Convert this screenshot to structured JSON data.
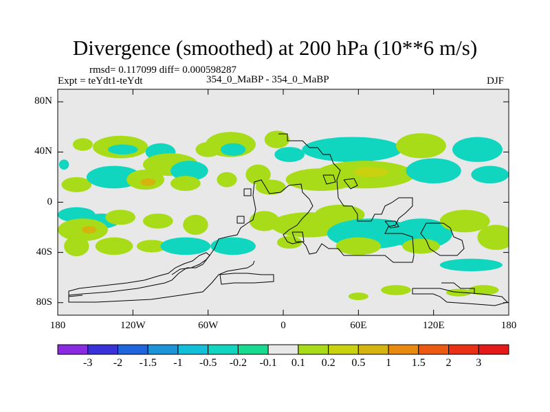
{
  "title": "Divergence (smoothed) at 200 hPa (10**6 m/s)",
  "stats_line": "rmsd= 0.117099 diff= 0.000598287",
  "left_label": "Expt = teYdt1-teYdt",
  "center_label": "354_0_MaBP - 354_0_MaBP",
  "right_label": "DJF",
  "chart_data": {
    "type": "heatmap",
    "title": "Divergence (smoothed) at 200 hPa (10**6 m/s)",
    "x_ticks": [
      {
        "value": -180,
        "label": "180"
      },
      {
        "value": -120,
        "label": "120W"
      },
      {
        "value": -60,
        "label": "60W"
      },
      {
        "value": 0,
        "label": "0"
      },
      {
        "value": 60,
        "label": "60E"
      },
      {
        "value": 120,
        "label": "120E"
      },
      {
        "value": 180,
        "label": "180"
      }
    ],
    "y_ticks": [
      {
        "value": 80,
        "label": "80N"
      },
      {
        "value": 40,
        "label": "40N"
      },
      {
        "value": 0,
        "label": "0"
      },
      {
        "value": -40,
        "label": "40S"
      },
      {
        "value": -80,
        "label": "80S"
      }
    ],
    "xlim": [
      -180,
      180
    ],
    "ylim": [
      -90,
      90
    ],
    "colorbar": {
      "labels": [
        "-3",
        "-2",
        "-1.5",
        "-1",
        "-0.5",
        "-0.2",
        "-0.1",
        "0.1",
        "0.2",
        "0.5",
        "1",
        "1.5",
        "2",
        "3"
      ],
      "colors": [
        "#8a2be2",
        "#3a32d8",
        "#1f66dc",
        "#1d94d8",
        "#12bfd8",
        "#10d6c0",
        "#18db90",
        "#e8e8e8",
        "#a8dc18",
        "#c8d20e",
        "#d6b410",
        "#e88a10",
        "#ec5a12",
        "#ea3014",
        "#e41a1a"
      ]
    },
    "background_color": "#e8e8e8",
    "features": [
      {
        "lon": -160,
        "lat": 46,
        "rlon": 8,
        "rlat": 5,
        "level": "0.1"
      },
      {
        "lon": -130,
        "lat": 44,
        "rlon": 22,
        "rlat": 9,
        "level": "0.1"
      },
      {
        "lon": -128,
        "lat": 42,
        "rlon": 12,
        "rlat": 4,
        "level": "-0.2"
      },
      {
        "lon": -98,
        "lat": 40,
        "rlon": 12,
        "rlat": 7,
        "level": "-0.2"
      },
      {
        "lon": -90,
        "lat": 30,
        "rlon": 22,
        "rlat": 9,
        "level": "0.1"
      },
      {
        "lon": -60,
        "lat": 42,
        "rlon": 10,
        "rlat": 6,
        "level": "0.1"
      },
      {
        "lon": -42,
        "lat": 46,
        "rlon": 20,
        "rlat": 10,
        "level": "0.1"
      },
      {
        "lon": -40,
        "lat": 42,
        "rlon": 10,
        "rlat": 5,
        "level": "-0.2"
      },
      {
        "lon": -5,
        "lat": 50,
        "rlon": 10,
        "rlat": 7,
        "level": "0.1"
      },
      {
        "lon": 5,
        "lat": 38,
        "rlon": 12,
        "rlat": 6,
        "level": "-0.2"
      },
      {
        "lon": 55,
        "lat": 42,
        "rlon": 40,
        "rlat": 10,
        "level": "-0.2"
      },
      {
        "lon": 110,
        "lat": 45,
        "rlon": 20,
        "rlat": 10,
        "level": "0.1"
      },
      {
        "lon": 155,
        "lat": 42,
        "rlon": 20,
        "rlat": 10,
        "level": "-0.2"
      },
      {
        "lon": -175,
        "lat": 30,
        "rlon": 4,
        "rlat": 4,
        "level": "-0.2"
      },
      {
        "lon": -165,
        "lat": 14,
        "rlon": 12,
        "rlat": 6,
        "level": "0.1"
      },
      {
        "lon": -135,
        "lat": 20,
        "rlon": 22,
        "rlat": 9,
        "level": "-0.2"
      },
      {
        "lon": -110,
        "lat": 18,
        "rlon": 15,
        "rlat": 8,
        "level": "0.1"
      },
      {
        "lon": -108,
        "lat": 16,
        "rlon": 6,
        "rlat": 3,
        "level": "0.5"
      },
      {
        "lon": -75,
        "lat": 25,
        "rlon": 15,
        "rlat": 8,
        "level": "-0.2"
      },
      {
        "lon": -78,
        "lat": 15,
        "rlon": 12,
        "rlat": 6,
        "level": "0.1"
      },
      {
        "lon": -45,
        "lat": 18,
        "rlon": 8,
        "rlat": 6,
        "level": "0.1"
      },
      {
        "lon": -20,
        "lat": 22,
        "rlon": 10,
        "rlat": 8,
        "level": "0.1"
      },
      {
        "lon": -10,
        "lat": 12,
        "rlon": 12,
        "rlat": 6,
        "level": "0.1"
      },
      {
        "lon": 30,
        "lat": 18,
        "rlon": 28,
        "rlat": 9,
        "level": "0.1"
      },
      {
        "lon": 65,
        "lat": 22,
        "rlon": 40,
        "rlat": 11,
        "level": "0.1"
      },
      {
        "lon": 70,
        "lat": 24,
        "rlon": 14,
        "rlat": 4,
        "level": "0.2"
      },
      {
        "lon": 120,
        "lat": 25,
        "rlon": 22,
        "rlat": 10,
        "level": "-0.2"
      },
      {
        "lon": 165,
        "lat": 22,
        "rlon": 15,
        "rlat": 7,
        "level": "-0.2"
      },
      {
        "lon": -165,
        "lat": -10,
        "rlon": 15,
        "rlat": 6,
        "level": "-0.2"
      },
      {
        "lon": -145,
        "lat": -15,
        "rlon": 14,
        "rlat": 6,
        "level": "-0.2"
      },
      {
        "lon": -160,
        "lat": -22,
        "rlon": 20,
        "rlat": 9,
        "level": "0.1"
      },
      {
        "lon": -155,
        "lat": -22,
        "rlon": 6,
        "rlat": 3,
        "level": "0.5"
      },
      {
        "lon": -130,
        "lat": -12,
        "rlon": 12,
        "rlat": 6,
        "level": "0.1"
      },
      {
        "lon": -100,
        "lat": -15,
        "rlon": 12,
        "rlat": 6,
        "level": "0.1"
      },
      {
        "lon": -70,
        "lat": -18,
        "rlon": 10,
        "rlat": 8,
        "level": "0.1"
      },
      {
        "lon": -15,
        "lat": -15,
        "rlon": 12,
        "rlat": 8,
        "level": "0.1"
      },
      {
        "lon": 20,
        "lat": -18,
        "rlon": 30,
        "rlat": 10,
        "level": "0.1"
      },
      {
        "lon": 45,
        "lat": -10,
        "rlon": 20,
        "rlat": 8,
        "level": "0.1"
      },
      {
        "lon": 70,
        "lat": -25,
        "rlon": 35,
        "rlat": 12,
        "level": "-0.2"
      },
      {
        "lon": 110,
        "lat": -25,
        "rlon": 25,
        "rlat": 12,
        "level": "-0.2"
      },
      {
        "lon": 145,
        "lat": -15,
        "rlon": 20,
        "rlat": 9,
        "level": "0.1"
      },
      {
        "lon": 170,
        "lat": -28,
        "rlon": 15,
        "rlat": 10,
        "level": "0.1"
      },
      {
        "lon": -165,
        "lat": -35,
        "rlon": 10,
        "rlat": 8,
        "level": "0.1"
      },
      {
        "lon": -135,
        "lat": -35,
        "rlon": 15,
        "rlat": 7,
        "level": "0.1"
      },
      {
        "lon": -105,
        "lat": -35,
        "rlon": 12,
        "rlat": 5,
        "level": "0.1"
      },
      {
        "lon": -78,
        "lat": -35,
        "rlon": 20,
        "rlat": 7,
        "level": "-0.2"
      },
      {
        "lon": -40,
        "lat": -35,
        "rlon": 18,
        "rlat": 7,
        "level": "-0.2"
      },
      {
        "lon": 5,
        "lat": -32,
        "rlon": 10,
        "rlat": 5,
        "level": "0.1"
      },
      {
        "lon": 60,
        "lat": -35,
        "rlon": 18,
        "rlat": 7,
        "level": "0.1"
      },
      {
        "lon": 110,
        "lat": -35,
        "rlon": 15,
        "rlat": 6,
        "level": "0.1"
      },
      {
        "lon": 150,
        "lat": -50,
        "rlon": 25,
        "rlat": 5,
        "level": "-0.2"
      },
      {
        "lon": 90,
        "lat": -70,
        "rlon": 12,
        "rlat": 4,
        "level": "0.1"
      },
      {
        "lon": 140,
        "lat": -72,
        "rlon": 10,
        "rlat": 3,
        "level": "0.1"
      },
      {
        "lon": 160,
        "lat": -70,
        "rlon": 12,
        "rlat": 4,
        "level": "0.1"
      },
      {
        "lon": 60,
        "lat": -75,
        "rlon": 8,
        "rlat": 3,
        "level": "0.1"
      }
    ]
  }
}
